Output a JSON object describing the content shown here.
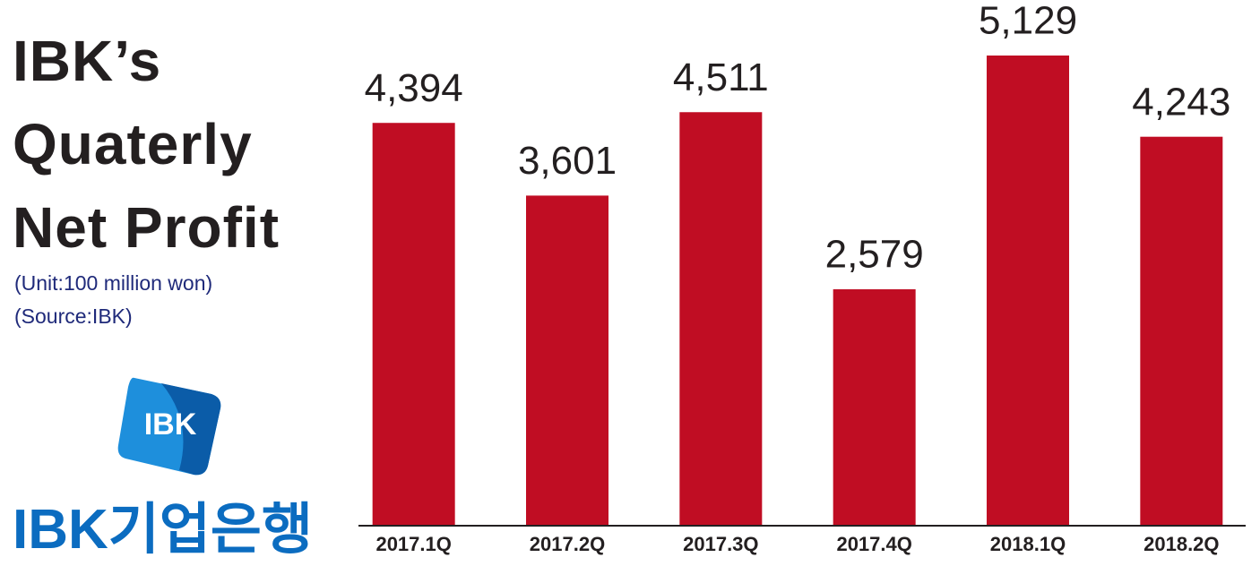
{
  "chart_data": {
    "type": "bar",
    "title": "IBK’s Quaterly Net Profit",
    "subtitle": [
      "(Unit:100 million won)",
      "(Source:IBK)"
    ],
    "logo_mark": "IBK",
    "logo_text": "IBK기업은행",
    "categories": [
      "2017.1Q",
      "2017.2Q",
      "2017.3Q",
      "2017.4Q",
      "2018.1Q",
      "2018.2Q"
    ],
    "values": [
      4394,
      3601,
      4511,
      2579,
      5129,
      4243
    ],
    "value_labels": [
      "4,394",
      "3,601",
      "4,511",
      "2,579",
      "5,129",
      "4,243"
    ],
    "color": "#c00d23"
  }
}
